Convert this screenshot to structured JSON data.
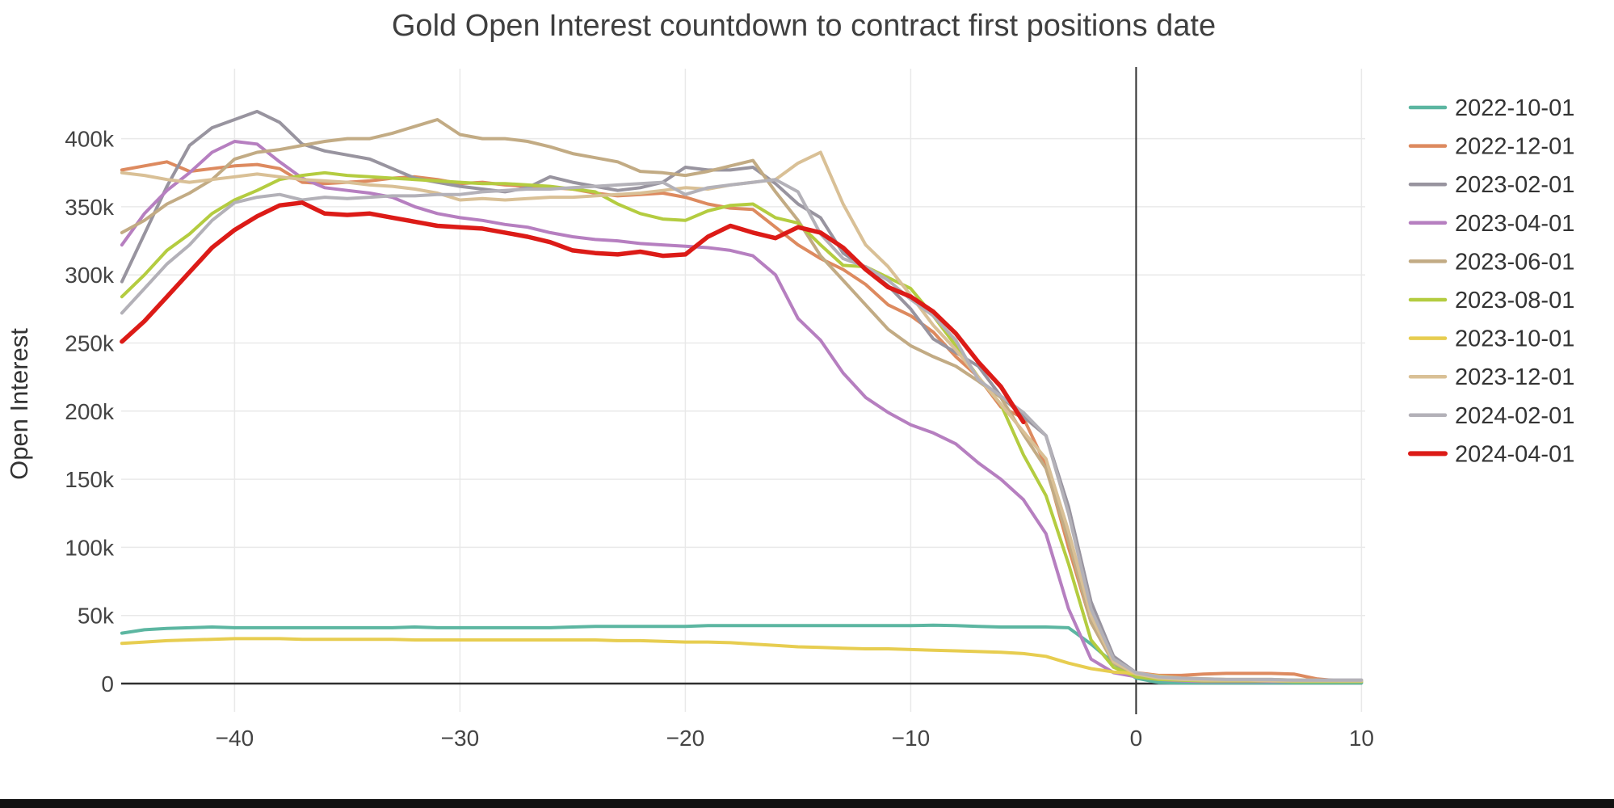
{
  "page": {
    "background": "#ffffff",
    "bottom_bar_color": "#111111"
  },
  "chart_data": {
    "type": "line",
    "title": "Gold Open Interest countdown to contract first positions date",
    "ylabel": "Open Interest",
    "xlabel": "",
    "unit": "contracts (values stored in thousands)",
    "x_start": -45,
    "x_step": 1,
    "xlim": [
      -45.5,
      10.5
    ],
    "ylim": [
      0,
      450
    ],
    "grid": true,
    "legend_position": "right",
    "colors": {
      "axis": "#2f2f2f",
      "grid": "#e9e9e9",
      "tick_text": "#444444",
      "title_text": "#3f3f3f",
      "legend_text": "#333333",
      "zero_marker_line": "#2f2f2f"
    },
    "x_ticks": [
      {
        "value": -40,
        "label": "−40"
      },
      {
        "value": -30,
        "label": "−30"
      },
      {
        "value": -20,
        "label": "−20"
      },
      {
        "value": -10,
        "label": "−10"
      },
      {
        "value": 0,
        "label": "0"
      },
      {
        "value": 10,
        "label": "10"
      }
    ],
    "y_ticks": [
      {
        "value": 0,
        "label": "0"
      },
      {
        "value": 50,
        "label": "50k"
      },
      {
        "value": 100,
        "label": "100k"
      },
      {
        "value": 150,
        "label": "150k"
      },
      {
        "value": 200,
        "label": "200k"
      },
      {
        "value": 250,
        "label": "250k"
      },
      {
        "value": 300,
        "label": "300k"
      },
      {
        "value": 350,
        "label": "350k"
      },
      {
        "value": 400,
        "label": "400k"
      }
    ],
    "series": [
      {
        "name": "2022-10-01",
        "color": "#5cb6a1",
        "width": 4,
        "values": [
          37,
          39.5,
          40.5,
          41,
          41.5,
          41,
          41,
          41,
          41,
          41,
          41,
          41,
          41,
          41.5,
          41,
          41,
          41,
          41,
          41,
          41,
          41.5,
          42,
          42,
          42,
          42,
          42,
          42.5,
          42.5,
          42.5,
          42.5,
          42.5,
          42.5,
          42.5,
          42.5,
          42.5,
          42.5,
          42.8,
          42.5,
          42,
          41.5,
          41.5,
          41.5,
          41,
          29,
          15,
          4,
          0.8,
          0.5,
          0.5,
          0.5,
          0.5,
          0.5,
          0.5,
          0.5,
          0.5,
          0.5
        ]
      },
      {
        "name": "2022-12-01",
        "color": "#dd8a5f",
        "width": 4,
        "values": [
          377,
          380,
          383,
          376,
          378,
          380,
          381,
          378,
          368,
          367,
          368,
          369,
          371,
          372,
          370,
          367,
          368,
          366,
          365,
          364,
          363,
          360,
          358,
          359,
          360,
          357,
          352,
          349,
          348,
          335,
          322,
          312,
          304,
          293,
          278,
          270,
          258,
          240,
          225,
          203,
          195,
          160,
          100,
          45,
          15,
          8,
          6,
          6,
          7,
          7.5,
          7.5,
          7.5,
          7,
          3.5,
          2,
          2
        ]
      },
      {
        "name": "2023-02-01",
        "color": "#98949f",
        "width": 4,
        "values": [
          295,
          330,
          365,
          395,
          408,
          414,
          420,
          412,
          396,
          391,
          388,
          385,
          378,
          371,
          368,
          365,
          363,
          361,
          364,
          372,
          368,
          365,
          362,
          364,
          368,
          379,
          377,
          377,
          379,
          367,
          352,
          342,
          316,
          305,
          292,
          275,
          253,
          243,
          233,
          211,
          196,
          182,
          130,
          60,
          20,
          8,
          4,
          3,
          2.5,
          2.5,
          2.5,
          2.5,
          2.5,
          2.5,
          2.5,
          2.5
        ]
      },
      {
        "name": "2023-04-01",
        "color": "#b67fc0",
        "width": 4,
        "values": [
          322,
          345,
          362,
          375,
          390,
          398,
          396,
          383,
          371,
          364,
          362,
          360,
          357,
          350,
          345,
          342,
          340,
          337,
          335,
          331,
          328,
          326,
          325,
          323,
          322,
          321,
          320,
          318,
          314,
          300,
          268,
          252,
          228,
          210,
          199,
          190,
          184,
          176,
          162,
          150,
          135,
          110,
          55,
          18,
          8,
          5,
          3,
          2,
          1.5,
          1.5,
          1.5,
          1.5,
          1.5,
          1.5,
          1.5,
          1.5
        ]
      },
      {
        "name": "2023-06-01",
        "color": "#c2ab84",
        "width": 4,
        "values": [
          331,
          340,
          352,
          360,
          370,
          385,
          390,
          392,
          395,
          398,
          400,
          400,
          404,
          409,
          414,
          403,
          400,
          400,
          398,
          394,
          389,
          386,
          383,
          376,
          375,
          373,
          376,
          380,
          384,
          361,
          340,
          314,
          296,
          278,
          260,
          248,
          240,
          233,
          222,
          210,
          183,
          158,
          105,
          45,
          15,
          7,
          4,
          3,
          2.5,
          2.5,
          2.5,
          2.5,
          2,
          2,
          2,
          2
        ]
      },
      {
        "name": "2023-08-01",
        "color": "#b4cc40",
        "width": 4,
        "values": [
          284,
          300,
          318,
          330,
          345,
          355,
          362,
          370,
          373,
          375,
          373,
          372,
          371,
          370,
          369,
          368,
          367,
          367,
          366,
          365,
          363,
          361,
          352,
          345,
          341,
          340,
          347,
          351,
          352,
          342,
          338,
          322,
          307,
          306,
          298,
          290,
          270,
          248,
          225,
          205,
          168,
          138,
          88,
          32,
          12,
          5,
          3,
          2.5,
          2,
          2,
          2,
          2,
          1.5,
          1.5,
          1.5,
          1.5
        ]
      },
      {
        "name": "2023-10-01",
        "color": "#e7cd50",
        "width": 4,
        "values": [
          29.5,
          30.5,
          31.5,
          32,
          32.5,
          33,
          33,
          33,
          32.5,
          32.5,
          32.5,
          32.5,
          32.5,
          32,
          32,
          32,
          32,
          32,
          32,
          32,
          32,
          32,
          31.5,
          31.5,
          31,
          30.5,
          30.5,
          30,
          29,
          28,
          27,
          26.5,
          26,
          25.5,
          25.5,
          25,
          24.5,
          24,
          23.5,
          23,
          22,
          20,
          15,
          11,
          8.5,
          7.5,
          5.5,
          4,
          3.5,
          3,
          3,
          3,
          2.5,
          2.5,
          2,
          2
        ]
      },
      {
        "name": "2023-12-01",
        "color": "#d9c096",
        "width": 4,
        "values": [
          375,
          373,
          370,
          368,
          370,
          372,
          374,
          372,
          370,
          369,
          368,
          366,
          365,
          363,
          360,
          355,
          356,
          355,
          356,
          357,
          357,
          358,
          359,
          360,
          362,
          364,
          363,
          366,
          368,
          370,
          382,
          390,
          352,
          322,
          306,
          285,
          263,
          245,
          225,
          205,
          185,
          165,
          112,
          50,
          16,
          7,
          4,
          3,
          2.5,
          2.5,
          2.5,
          2,
          2,
          2,
          2,
          2
        ]
      },
      {
        "name": "2024-02-01",
        "color": "#b3b1b8",
        "width": 4,
        "values": [
          272,
          290,
          308,
          322,
          340,
          353,
          357,
          359,
          355,
          357,
          356,
          357,
          358,
          358,
          359,
          359,
          361,
          362,
          363,
          363,
          364,
          365,
          366,
          367,
          368,
          359,
          364,
          366,
          368,
          370,
          361,
          330,
          312,
          306,
          296,
          282,
          270,
          252,
          223,
          211,
          199,
          182,
          125,
          55,
          18,
          8,
          5,
          4,
          3.5,
          3,
          3,
          3,
          2.5,
          2.5,
          2.5,
          2.5
        ]
      },
      {
        "name": "2024-04-01",
        "color": "#dc1b17",
        "width": 5.5,
        "values": [
          251,
          266,
          284,
          302,
          320,
          333,
          343,
          351,
          353,
          345,
          344,
          345,
          342,
          339,
          336,
          335,
          334,
          331,
          328,
          324,
          318,
          316,
          315,
          317,
          314,
          315,
          328,
          336,
          331,
          327,
          335,
          331,
          320,
          304,
          291,
          284,
          273,
          257,
          236,
          218,
          192
        ]
      }
    ]
  }
}
